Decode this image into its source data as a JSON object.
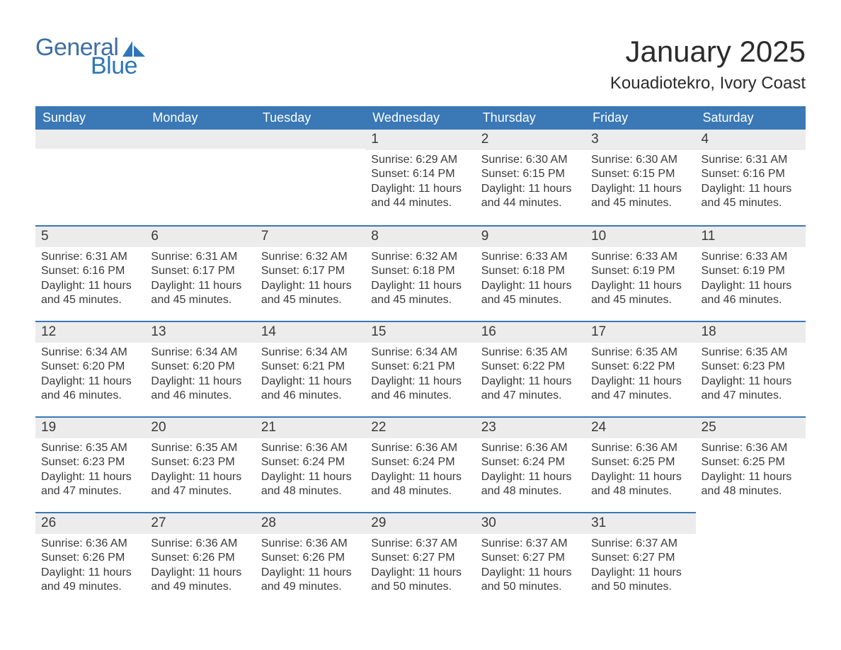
{
  "logo": {
    "text1": "General",
    "text2": "Blue",
    "sail_color": "#2f76b8",
    "text_color": "#3e6fa3"
  },
  "title": "January 2025",
  "location": "Kouadiotekro, Ivory Coast",
  "colors": {
    "header_bg": "#3a78b6",
    "header_text": "#ffffff",
    "daynum_bg": "#ececec",
    "rule": "#3a78b6",
    "body_text": "#3a3a3a",
    "page_bg": "#ffffff"
  },
  "weekdays": [
    "Sunday",
    "Monday",
    "Tuesday",
    "Wednesday",
    "Thursday",
    "Friday",
    "Saturday"
  ],
  "first_weekday_index": 3,
  "days_in_month": 31,
  "days": {
    "1": {
      "sunrise": "6:29 AM",
      "sunset": "6:14 PM",
      "daylight": "11 hours and 44 minutes."
    },
    "2": {
      "sunrise": "6:30 AM",
      "sunset": "6:15 PM",
      "daylight": "11 hours and 44 minutes."
    },
    "3": {
      "sunrise": "6:30 AM",
      "sunset": "6:15 PM",
      "daylight": "11 hours and 45 minutes."
    },
    "4": {
      "sunrise": "6:31 AM",
      "sunset": "6:16 PM",
      "daylight": "11 hours and 45 minutes."
    },
    "5": {
      "sunrise": "6:31 AM",
      "sunset": "6:16 PM",
      "daylight": "11 hours and 45 minutes."
    },
    "6": {
      "sunrise": "6:31 AM",
      "sunset": "6:17 PM",
      "daylight": "11 hours and 45 minutes."
    },
    "7": {
      "sunrise": "6:32 AM",
      "sunset": "6:17 PM",
      "daylight": "11 hours and 45 minutes."
    },
    "8": {
      "sunrise": "6:32 AM",
      "sunset": "6:18 PM",
      "daylight": "11 hours and 45 minutes."
    },
    "9": {
      "sunrise": "6:33 AM",
      "sunset": "6:18 PM",
      "daylight": "11 hours and 45 minutes."
    },
    "10": {
      "sunrise": "6:33 AM",
      "sunset": "6:19 PM",
      "daylight": "11 hours and 45 minutes."
    },
    "11": {
      "sunrise": "6:33 AM",
      "sunset": "6:19 PM",
      "daylight": "11 hours and 46 minutes."
    },
    "12": {
      "sunrise": "6:34 AM",
      "sunset": "6:20 PM",
      "daylight": "11 hours and 46 minutes."
    },
    "13": {
      "sunrise": "6:34 AM",
      "sunset": "6:20 PM",
      "daylight": "11 hours and 46 minutes."
    },
    "14": {
      "sunrise": "6:34 AM",
      "sunset": "6:21 PM",
      "daylight": "11 hours and 46 minutes."
    },
    "15": {
      "sunrise": "6:34 AM",
      "sunset": "6:21 PM",
      "daylight": "11 hours and 46 minutes."
    },
    "16": {
      "sunrise": "6:35 AM",
      "sunset": "6:22 PM",
      "daylight": "11 hours and 47 minutes."
    },
    "17": {
      "sunrise": "6:35 AM",
      "sunset": "6:22 PM",
      "daylight": "11 hours and 47 minutes."
    },
    "18": {
      "sunrise": "6:35 AM",
      "sunset": "6:23 PM",
      "daylight": "11 hours and 47 minutes."
    },
    "19": {
      "sunrise": "6:35 AM",
      "sunset": "6:23 PM",
      "daylight": "11 hours and 47 minutes."
    },
    "20": {
      "sunrise": "6:35 AM",
      "sunset": "6:23 PM",
      "daylight": "11 hours and 47 minutes."
    },
    "21": {
      "sunrise": "6:36 AM",
      "sunset": "6:24 PM",
      "daylight": "11 hours and 48 minutes."
    },
    "22": {
      "sunrise": "6:36 AM",
      "sunset": "6:24 PM",
      "daylight": "11 hours and 48 minutes."
    },
    "23": {
      "sunrise": "6:36 AM",
      "sunset": "6:24 PM",
      "daylight": "11 hours and 48 minutes."
    },
    "24": {
      "sunrise": "6:36 AM",
      "sunset": "6:25 PM",
      "daylight": "11 hours and 48 minutes."
    },
    "25": {
      "sunrise": "6:36 AM",
      "sunset": "6:25 PM",
      "daylight": "11 hours and 48 minutes."
    },
    "26": {
      "sunrise": "6:36 AM",
      "sunset": "6:26 PM",
      "daylight": "11 hours and 49 minutes."
    },
    "27": {
      "sunrise": "6:36 AM",
      "sunset": "6:26 PM",
      "daylight": "11 hours and 49 minutes."
    },
    "28": {
      "sunrise": "6:36 AM",
      "sunset": "6:26 PM",
      "daylight": "11 hours and 49 minutes."
    },
    "29": {
      "sunrise": "6:37 AM",
      "sunset": "6:27 PM",
      "daylight": "11 hours and 50 minutes."
    },
    "30": {
      "sunrise": "6:37 AM",
      "sunset": "6:27 PM",
      "daylight": "11 hours and 50 minutes."
    },
    "31": {
      "sunrise": "6:37 AM",
      "sunset": "6:27 PM",
      "daylight": "11 hours and 50 minutes."
    }
  },
  "labels": {
    "sunrise": "Sunrise:",
    "sunset": "Sunset:",
    "daylight": "Daylight:"
  }
}
